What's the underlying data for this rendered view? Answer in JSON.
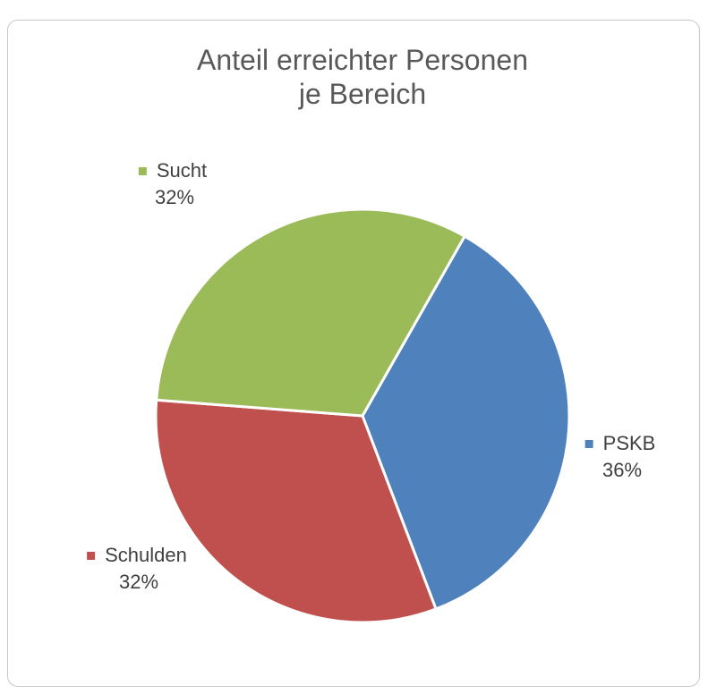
{
  "chart_data": {
    "type": "pie",
    "title": "Anteil erreichter Personen je Bereich",
    "categories": [
      "PSKB",
      "Schulden",
      "Sucht"
    ],
    "values": [
      36,
      32,
      32
    ],
    "value_labels": [
      "36%",
      "32%",
      "32%"
    ],
    "colors": [
      "#4f81bd",
      "#c0504d",
      "#9bbb59"
    ]
  }
}
